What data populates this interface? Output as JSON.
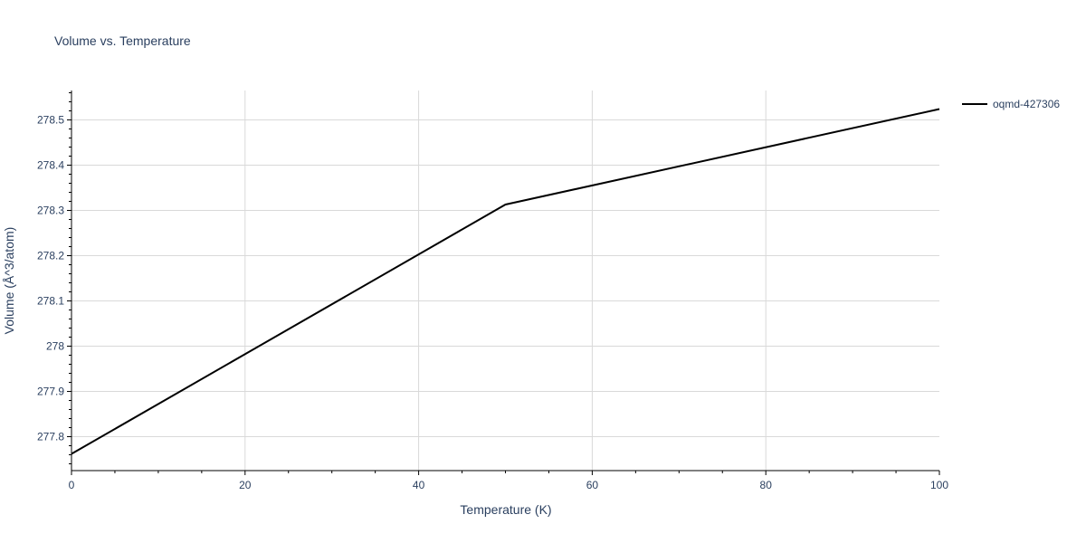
{
  "chart_data": {
    "type": "line",
    "title": "Volume vs. Temperature",
    "xlabel": "Temperature (K)",
    "ylabel": "Volume (Å^3/atom)",
    "xlim": [
      0,
      100
    ],
    "ylim": [
      277.725,
      278.565
    ],
    "x_ticks": [
      0,
      20,
      40,
      60,
      80,
      100
    ],
    "y_ticks": [
      277.8,
      277.9,
      278,
      278.1,
      278.2,
      278.3,
      278.4,
      278.5
    ],
    "y_tick_labels": [
      "277.8",
      "277.9",
      "278",
      "278.1",
      "278.2",
      "278.3",
      "278.4",
      "278.5"
    ],
    "grid": true,
    "legend_position": "top-right",
    "series": [
      {
        "name": "oqmd-427306",
        "color": "#000000",
        "x": [
          0,
          50,
          100
        ],
        "y": [
          277.762,
          278.313,
          278.524
        ]
      }
    ]
  }
}
